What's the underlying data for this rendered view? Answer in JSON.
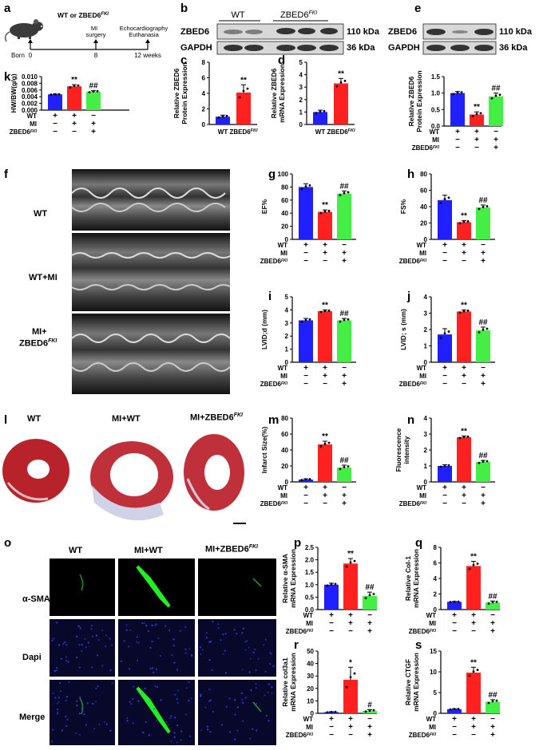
{
  "panel_letters": [
    "a",
    "b",
    "c",
    "d",
    "e",
    "f",
    "g",
    "h",
    "i",
    "j",
    "k",
    "l",
    "m",
    "n",
    "o",
    "p",
    "q",
    "r",
    "s"
  ],
  "timeline": {
    "group_label": "WT or ZBED6",
    "group_sup": "FKI",
    "born": "Born",
    "t0": "0",
    "t8": "8",
    "t12": "12 weeks",
    "mi_line1": "MI",
    "mi_line2": "surgery",
    "echo_line1": "Echocardiography",
    "echo_line2": "Euthanasia"
  },
  "blot_b": {
    "wt": "WT",
    "ko": "ZBED6",
    "ko_sup": "FKI",
    "row1": "ZBED6",
    "row2": "GAPDH",
    "kda1": "110 kDa",
    "kda2": "36 kDa"
  },
  "blot_e": {
    "row1": "ZBED6",
    "row2": "GAPDH",
    "kda1": "110 kDa",
    "kda2": "36 kDa"
  },
  "legend_rows": {
    "wt": "WT",
    "mi": "MI",
    "zb": "ZBED6",
    "zb_sup": "FKI"
  },
  "echo_labels": {
    "wt": "WT",
    "wtmi": "WT+MI",
    "mizb1": "MI+",
    "mizb2": "ZBED6",
    "mizb_sup": "FKI"
  },
  "heart_labels": {
    "wt": "WT",
    "miwt": "MI+WT",
    "mizb": "MI+ZBED6",
    "mizb_sup": "FKI"
  },
  "fluor": {
    "col_wt": "WT",
    "col_miwt": "MI+WT",
    "col_mizb": "MI+ZBED6",
    "col_sup": "FKI",
    "row1": "α-SMA",
    "row2": "Dapi",
    "row3": "Merge"
  },
  "colors": {
    "blue": "#1f1fff",
    "red": "#ff2020",
    "green": "#44ee44"
  },
  "chart_data": [
    {
      "id": "k",
      "type": "bar",
      "ylabel": "HW/BW(g/g)",
      "ylim": [
        0,
        0.01
      ],
      "ticks": [
        "0.000",
        "0.002",
        "0.004",
        "0.006",
        "0.008",
        "0.010"
      ],
      "tickvals": [
        0,
        0.002,
        0.004,
        0.006,
        0.008,
        0.01
      ],
      "values": [
        0.0047,
        0.0071,
        0.0055
      ],
      "errors": [
        0.0001,
        0.0005,
        0.0003
      ],
      "sig": [
        "",
        "**",
        "##"
      ],
      "groups": 3
    },
    {
      "id": "c",
      "type": "bar",
      "ylabel": "Relative ZBED6 Protein Expression",
      "ylim": [
        0,
        8
      ],
      "ticks": [
        "0",
        "2",
        "4",
        "6",
        "8"
      ],
      "tickvals": [
        0,
        2,
        4,
        6,
        8
      ],
      "values": [
        1,
        4.1
      ],
      "errors": [
        0.2,
        1.0
      ],
      "sig": [
        "",
        "**"
      ],
      "groups": 2,
      "xcat": [
        "WT",
        "ZBED6"
      ],
      "xsup": "FKI"
    },
    {
      "id": "d",
      "type": "bar",
      "ylabel": "Relative ZBED6 mRNA Expression",
      "ylim": [
        0,
        5
      ],
      "ticks": [
        "0",
        "1",
        "2",
        "3",
        "4",
        "5"
      ],
      "tickvals": [
        0,
        1,
        2,
        3,
        4,
        5
      ],
      "values": [
        1,
        3.3
      ],
      "errors": [
        0.15,
        0.4
      ],
      "sig": [
        "",
        "**"
      ],
      "groups": 2,
      "xcat": [
        "WT",
        "ZBED6"
      ],
      "xsup": "FKI"
    },
    {
      "id": "e",
      "type": "bar",
      "ylabel": "Relative ZBED6 Protein Expression",
      "ylim": [
        0,
        1.5
      ],
      "ticks": [
        "0.0",
        "0.5",
        "1.0",
        "1.5"
      ],
      "tickvals": [
        0,
        0.5,
        1.0,
        1.5
      ],
      "values": [
        1.0,
        0.35,
        0.9
      ],
      "errors": [
        0.05,
        0.08,
        0.1
      ],
      "sig": [
        "",
        "**",
        "##"
      ],
      "groups": 3
    },
    {
      "id": "g",
      "type": "bar",
      "ylabel": "EF%",
      "ylim": [
        0,
        100
      ],
      "ticks": [
        "0",
        "20",
        "40",
        "60",
        "80",
        "100"
      ],
      "tickvals": [
        0,
        20,
        40,
        60,
        80,
        100
      ],
      "values": [
        80,
        42,
        70
      ],
      "errors": [
        5,
        3,
        4
      ],
      "sig": [
        "",
        "**",
        "##"
      ],
      "groups": 3
    },
    {
      "id": "h",
      "type": "bar",
      "ylabel": "FS%",
      "ylim": [
        0,
        80
      ],
      "ticks": [
        "0",
        "20",
        "40",
        "60",
        "80"
      ],
      "tickvals": [
        0,
        20,
        40,
        60,
        80
      ],
      "values": [
        48,
        21,
        39
      ],
      "errors": [
        6,
        2,
        3
      ],
      "sig": [
        "",
        "**",
        "##"
      ],
      "groups": 3
    },
    {
      "id": "i",
      "type": "bar",
      "ylabel": "LVID;d (mm)",
      "ylim": [
        0,
        5
      ],
      "ticks": [
        "0",
        "1",
        "2",
        "3",
        "4",
        "5"
      ],
      "tickvals": [
        0,
        1,
        2,
        3,
        4,
        5
      ],
      "values": [
        3.2,
        3.9,
        3.2
      ],
      "errors": [
        0.15,
        0.1,
        0.15
      ],
      "sig": [
        "",
        "**",
        "##"
      ],
      "groups": 3
    },
    {
      "id": "j",
      "type": "bar",
      "ylabel": "LVID; s (mm)",
      "ylim": [
        0,
        4
      ],
      "ticks": [
        "0",
        "1",
        "2",
        "3",
        "4"
      ],
      "tickvals": [
        0,
        1,
        2,
        3,
        4
      ],
      "values": [
        1.7,
        3.1,
        1.95
      ],
      "errors": [
        0.35,
        0.1,
        0.2
      ],
      "sig": [
        "",
        "**",
        "##"
      ],
      "groups": 3
    },
    {
      "id": "m",
      "type": "bar",
      "ylabel": "Infarct Size(%)",
      "ylim": [
        0,
        80
      ],
      "ticks": [
        "0",
        "20",
        "40",
        "60",
        "80"
      ],
      "tickvals": [
        0,
        20,
        40,
        60,
        80
      ],
      "values": [
        3,
        47,
        18
      ],
      "errors": [
        1,
        4,
        3
      ],
      "sig": [
        "",
        "**",
        "##"
      ],
      "groups": 3
    },
    {
      "id": "n",
      "type": "bar",
      "ylabel": "Fluorescence intensity",
      "ylim": [
        0,
        4
      ],
      "ticks": [
        "0",
        "1",
        "2",
        "3",
        "4"
      ],
      "tickvals": [
        0,
        1,
        2,
        3,
        4
      ],
      "values": [
        1.0,
        2.8,
        1.25
      ],
      "errors": [
        0.08,
        0.08,
        0.1
      ],
      "sig": [
        "",
        "**",
        "##"
      ],
      "groups": 3
    },
    {
      "id": "p",
      "type": "bar",
      "ylabel": "Relative α-SMA mRNA Expression",
      "ylim": [
        0,
        2.5
      ],
      "ticks": [
        "0.0",
        "0.5",
        "1.0",
        "1.5",
        "2.0",
        "2.5"
      ],
      "tickvals": [
        0,
        0.5,
        1.0,
        1.5,
        2.0,
        2.5
      ],
      "values": [
        1.0,
        1.85,
        0.55
      ],
      "errors": [
        0.06,
        0.2,
        0.15
      ],
      "sig": [
        "",
        "**",
        "##"
      ],
      "groups": 3
    },
    {
      "id": "q",
      "type": "bar",
      "ylabel": "Relative Col-1 mRNA Expression",
      "ylim": [
        0,
        8
      ],
      "ticks": [
        "0",
        "2",
        "4",
        "6",
        "8"
      ],
      "tickvals": [
        0,
        2,
        4,
        6,
        8
      ],
      "values": [
        1.0,
        5.6,
        0.9
      ],
      "errors": [
        0.05,
        0.6,
        0.2
      ],
      "sig": [
        "",
        "**",
        "##"
      ],
      "groups": 3
    },
    {
      "id": "r",
      "type": "bar",
      "ylabel": "Relative col3a1 mRNA Expression",
      "ylim": [
        0,
        50
      ],
      "ticks": [
        "0",
        "10",
        "20",
        "30",
        "40",
        "50"
      ],
      "tickvals": [
        0,
        10,
        20,
        30,
        40,
        50
      ],
      "values": [
        1.0,
        27,
        2.0
      ],
      "errors": [
        0.3,
        10,
        1.0
      ],
      "sig": [
        "",
        "*",
        "#"
      ],
      "groups": 3
    },
    {
      "id": "s",
      "type": "bar",
      "ylabel": "Relative CTGF mRNA Expression",
      "ylim": [
        0,
        15
      ],
      "ticks": [
        "0",
        "5",
        "10",
        "15"
      ],
      "tickvals": [
        0,
        5,
        10,
        15
      ],
      "values": [
        1.0,
        9.8,
        2.8
      ],
      "errors": [
        0.1,
        1.3,
        0.5
      ],
      "sig": [
        "",
        "**",
        "##"
      ],
      "groups": 3
    }
  ]
}
